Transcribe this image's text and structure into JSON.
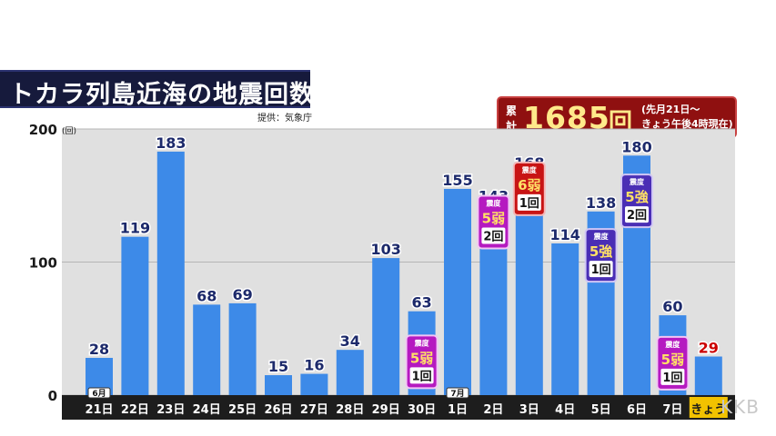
{
  "title": "トカラ列島近海の地震回数",
  "source": "提供：気象庁",
  "total": {
    "label_line1": "累",
    "label_line2": "計",
    "value": "1685",
    "unit": "回",
    "note_line1": "(先月21日～",
    "note_line2": "きょう午後4時現在)"
  },
  "watermark": "KKB",
  "colors": {
    "bar": "#3d8ae8",
    "plot_bg": "#e0e0e0",
    "axis_band": "#1d1d1d",
    "title_bg": "#161a3c",
    "total_bg": "#8f1010",
    "today_label": "#f2c200",
    "today_value": "#cc0000"
  },
  "chart_data": {
    "type": "bar",
    "y_unit": "(回)",
    "ylim": [
      0,
      200
    ],
    "yticks": [
      0,
      100,
      200
    ],
    "grid": true,
    "categories": [
      "21日",
      "22日",
      "23日",
      "24日",
      "25日",
      "26日",
      "27日",
      "28日",
      "29日",
      "30日",
      "1日",
      "2日",
      "3日",
      "4日",
      "5日",
      "6日",
      "7日",
      "きょう"
    ],
    "values": [
      28,
      119,
      183,
      68,
      69,
      15,
      16,
      34,
      103,
      63,
      155,
      143,
      168,
      114,
      138,
      180,
      60,
      29
    ],
    "month_markers": [
      {
        "index": 0,
        "label": "6月"
      },
      {
        "index": 10,
        "label": "7月"
      }
    ],
    "highlight_index": 17,
    "intensity_badges": [
      {
        "index": 9,
        "label": "震度",
        "level": "5弱",
        "count": "1回",
        "style": "purple",
        "anchor": 25
      },
      {
        "index": 11,
        "label": "震度",
        "level": "5弱",
        "count": "2回",
        "style": "purple",
        "anchor": 130
      },
      {
        "index": 12,
        "label": "震度",
        "level": "6弱",
        "count": "1回",
        "style": "red",
        "anchor": 155
      },
      {
        "index": 14,
        "label": "震度",
        "level": "5強",
        "count": "1回",
        "style": "indigo",
        "anchor": 105
      },
      {
        "index": 15,
        "label": "震度",
        "level": "5強",
        "count": "2回",
        "style": "indigo",
        "anchor": 146
      },
      {
        "index": 16,
        "label": "震度",
        "level": "5弱",
        "count": "1回",
        "style": "purple",
        "anchor": 24
      }
    ]
  }
}
